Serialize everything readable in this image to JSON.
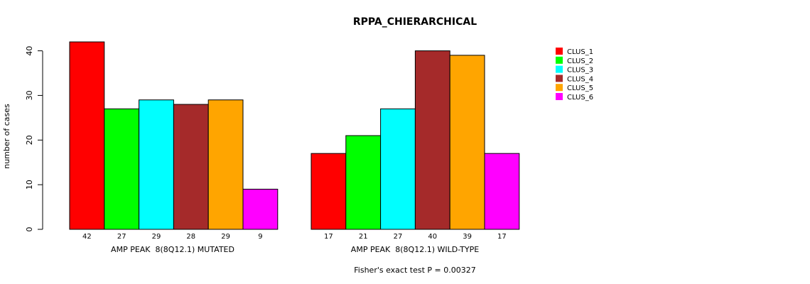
{
  "chart_data": {
    "type": "bar",
    "title": "RPPA_CHIERARCHICAL",
    "ylabel": "number of cases",
    "footnote": "Fisher's exact test P = 0.00327",
    "ylim": [
      0,
      42
    ],
    "yticks": [
      0,
      10,
      20,
      30,
      40
    ],
    "groups": [
      {
        "label": "AMP PEAK  8(8Q12.1) MUTATED",
        "values": [
          42,
          27,
          29,
          28,
          29,
          9
        ]
      },
      {
        "label": "AMP PEAK  8(8Q12.1) WILD-TYPE",
        "values": [
          17,
          21,
          27,
          40,
          39,
          17
        ]
      }
    ],
    "series": [
      {
        "name": "CLUS_1",
        "color": "#ff0000"
      },
      {
        "name": "CLUS_2",
        "color": "#00ff00"
      },
      {
        "name": "CLUS_3",
        "color": "#00ffff"
      },
      {
        "name": "CLUS_4",
        "color": "#a52a2a"
      },
      {
        "name": "CLUS_5",
        "color": "#ffa500"
      },
      {
        "name": "CLUS_6",
        "color": "#ff00ff"
      }
    ],
    "grid": false,
    "legend_position": "top-right"
  }
}
